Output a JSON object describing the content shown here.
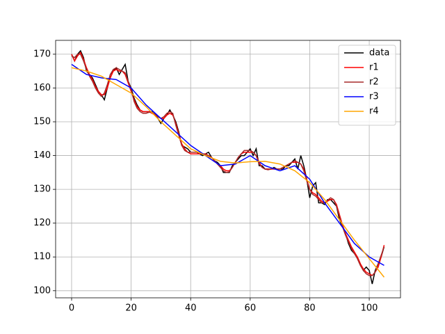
{
  "chart_data": {
    "type": "line",
    "x": [
      0,
      1,
      2,
      3,
      4,
      5,
      6,
      7,
      8,
      9,
      10,
      11,
      12,
      13,
      14,
      15,
      16,
      17,
      18,
      19,
      20,
      21,
      22,
      23,
      24,
      25,
      26,
      27,
      28,
      29,
      30,
      31,
      32,
      33,
      34,
      35,
      36,
      37,
      38,
      39,
      40,
      41,
      42,
      43,
      44,
      45,
      46,
      47,
      48,
      49,
      50,
      51,
      52,
      53,
      54,
      55,
      56,
      57,
      58,
      59,
      60,
      61,
      62,
      63,
      64,
      65,
      66,
      67,
      68,
      69,
      70,
      71,
      72,
      73,
      74,
      75,
      76,
      77,
      78,
      79,
      80,
      81,
      82,
      83,
      84,
      85,
      86,
      87,
      88,
      89,
      90,
      91,
      92,
      93,
      94,
      95,
      96,
      97,
      98,
      99,
      100,
      101,
      102,
      103,
      104,
      105
    ],
    "series": [
      {
        "name": "data",
        "color": "#000000",
        "values": [
          170,
          168,
          170,
          171,
          169,
          165,
          164,
          163,
          161,
          159,
          158,
          156.5,
          160,
          164,
          165,
          166,
          164,
          165.5,
          167,
          162,
          160,
          157,
          155,
          153.5,
          153,
          153,
          153,
          153,
          152,
          151,
          149.5,
          151,
          152,
          153.5,
          152,
          150,
          147,
          143,
          142.5,
          142,
          141,
          141,
          141,
          140.5,
          140,
          140.5,
          141,
          139.5,
          138.5,
          138,
          137,
          135,
          135,
          135,
          137,
          138,
          139,
          140,
          140,
          141,
          142,
          140,
          142,
          137,
          137,
          136,
          136,
          136,
          136.5,
          136,
          136,
          136,
          137,
          137,
          138,
          139,
          136,
          140,
          137,
          133,
          127.5,
          131,
          132,
          126,
          126,
          125.5,
          127,
          127,
          126,
          125,
          121,
          119,
          117,
          114,
          112,
          111,
          110,
          108,
          106,
          107,
          106,
          102,
          106,
          108,
          110,
          113
        ]
      },
      {
        "name": "r1",
        "color": "#ff0000",
        "values": [
          170,
          168,
          169.5,
          170.5,
          168.5,
          166,
          164,
          162.5,
          160.5,
          159,
          158,
          158,
          160,
          163,
          165,
          165.5,
          165,
          165,
          164,
          161.5,
          159,
          156.5,
          154.5,
          153.5,
          153,
          153,
          153,
          152.5,
          152,
          151.5,
          151,
          151,
          152,
          152.5,
          152,
          149.5,
          146.5,
          143.5,
          142,
          141,
          140.5,
          140.5,
          140.5,
          140.5,
          140.5,
          140.5,
          140,
          139.5,
          138.5,
          137.5,
          137,
          136,
          135.5,
          135.5,
          136.5,
          138,
          139.5,
          140.5,
          141,
          141,
          141,
          141,
          140,
          138,
          136.5,
          136,
          136,
          136,
          136,
          136,
          136,
          136.5,
          137,
          137.5,
          138,
          138,
          138,
          137.5,
          136,
          133,
          130,
          129,
          128.5,
          127.5,
          126.5,
          126,
          126.5,
          127,
          127,
          125.5,
          122.5,
          119.5,
          117,
          115,
          113,
          111.5,
          110,
          108,
          106.5,
          105.5,
          105,
          104.5,
          105.5,
          107,
          110,
          113.5
        ]
      },
      {
        "name": "r2",
        "color": "#a52a2a",
        "values": [
          169.5,
          169,
          170,
          170,
          168,
          165.5,
          163.5,
          162,
          160,
          158.5,
          157.5,
          158.5,
          161,
          164,
          165.5,
          166,
          165.5,
          165,
          164.5,
          162,
          159.5,
          156,
          154,
          153,
          152.5,
          152.5,
          152.8,
          152.8,
          152.3,
          151.5,
          151,
          151.5,
          152.5,
          153,
          152.5,
          149,
          146,
          143,
          141.5,
          141,
          141,
          141,
          141,
          140.8,
          140.5,
          140.3,
          140,
          139.5,
          138.5,
          137.5,
          136.5,
          135.5,
          135,
          135.2,
          136.5,
          138,
          139.5,
          140.5,
          141.5,
          141.5,
          141.5,
          141,
          140,
          137.5,
          136.5,
          136,
          135.8,
          136,
          136.2,
          136,
          136,
          136.5,
          137,
          137.5,
          138,
          138.5,
          138,
          137.5,
          135.5,
          132.5,
          130,
          128.5,
          128,
          127,
          126,
          126,
          126.8,
          127.5,
          127,
          125,
          122,
          119,
          116.5,
          114.5,
          112.5,
          111,
          109.5,
          107.5,
          106,
          105,
          104.5,
          104.5,
          105.5,
          108,
          110.5,
          113
        ]
      },
      {
        "name": "r3",
        "color": "#0000ff",
        "x": [
          0,
          5,
          10,
          15,
          20,
          25,
          30,
          35,
          40,
          45,
          50,
          55,
          60,
          65,
          70,
          75,
          80,
          85,
          90,
          95,
          100,
          105
        ],
        "values": [
          167,
          164,
          163,
          162.5,
          160,
          155,
          151,
          147,
          143,
          140,
          137,
          137.5,
          140,
          137,
          135.5,
          137,
          133,
          126,
          120,
          114,
          110,
          107.5
        ]
      },
      {
        "name": "r4",
        "color": "#ffa500",
        "x": [
          0,
          5,
          10,
          15,
          20,
          25,
          30,
          35,
          40,
          45,
          50,
          55,
          60,
          65,
          70,
          75,
          80,
          85,
          90,
          95,
          100,
          105
        ],
        "values": [
          166,
          165,
          163.5,
          161,
          158.5,
          154.5,
          150,
          146,
          142,
          140,
          138.3,
          137.8,
          138.2,
          138.3,
          137.5,
          135.5,
          132,
          127,
          121,
          115,
          109.5,
          104
        ]
      }
    ],
    "xlim": [
      -5.37,
      110.5
    ],
    "ylim": [
      97.9,
      174.1
    ],
    "xticks": [
      0,
      20,
      40,
      60,
      80,
      100
    ],
    "yticks": [
      100,
      110,
      120,
      130,
      140,
      150,
      160,
      170
    ],
    "grid": true,
    "legend": "upper right"
  }
}
